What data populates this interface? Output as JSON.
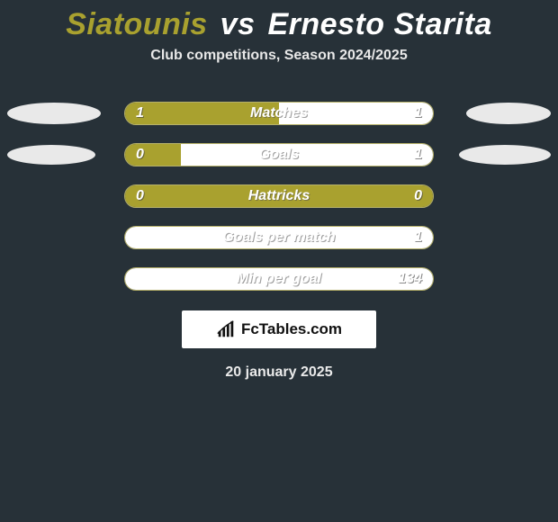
{
  "colors": {
    "background": "#273138",
    "player1": "#a9a12f",
    "player2": "#ffffff",
    "cloud": "#e9e9e9",
    "bar_border": "#b6b16a"
  },
  "header": {
    "player1_name": "Siatounis",
    "vs_label": "vs",
    "player2_name": "Ernesto Starita",
    "subtitle": "Club competitions, Season 2024/2025"
  },
  "rows": [
    {
      "label": "Matches",
      "left_value": "1",
      "right_value": "1",
      "left_fill_pct": 50,
      "right_fill_pct": 50,
      "left_cloud": {
        "w": 104,
        "h": 24
      },
      "right_cloud": {
        "w": 94,
        "h": 24
      }
    },
    {
      "label": "Goals",
      "left_value": "0",
      "right_value": "1",
      "left_fill_pct": 18,
      "right_fill_pct": 82,
      "left_cloud": {
        "w": 98,
        "h": 22
      },
      "right_cloud": {
        "w": 102,
        "h": 22
      }
    },
    {
      "label": "Hattricks",
      "left_value": "0",
      "right_value": "0",
      "left_fill_pct": 100,
      "right_fill_pct": 0,
      "left_cloud": null,
      "right_cloud": null
    },
    {
      "label": "Goals per match",
      "left_value": "",
      "right_value": "1",
      "left_fill_pct": 0,
      "right_fill_pct": 100,
      "left_cloud": null,
      "right_cloud": null
    },
    {
      "label": "Min per goal",
      "left_value": "",
      "right_value": "134",
      "left_fill_pct": 0,
      "right_fill_pct": 100,
      "left_cloud": null,
      "right_cloud": null
    }
  ],
  "footer": {
    "brand_text": "FcTables.com",
    "date_text": "20 january 2025"
  }
}
